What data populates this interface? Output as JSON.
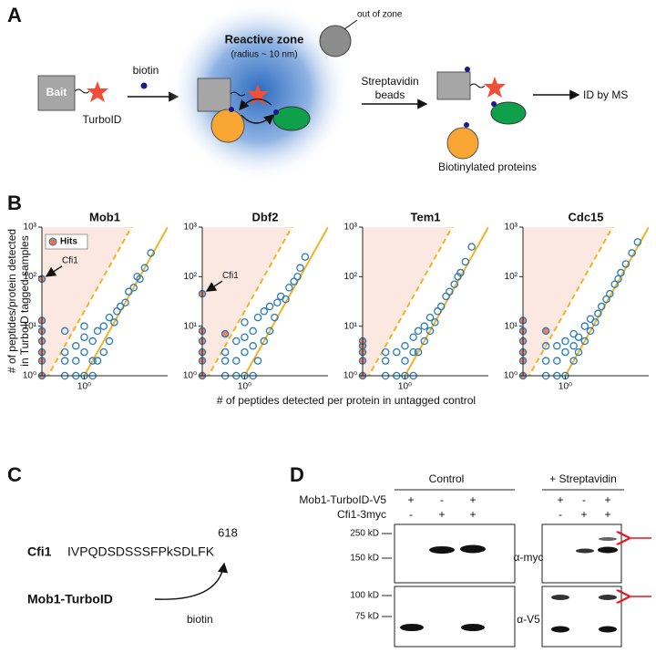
{
  "panel_labels": [
    "A",
    "B",
    "C",
    "D"
  ],
  "diagram_a": {
    "bait": "Bait",
    "turboid": "TurboID",
    "biotin": "biotin",
    "zone_title": "Reactive zone",
    "zone_radius": "(radius ~ 10 nm)",
    "out_of_zone": "out of zone",
    "streptavidin_1": "Streptavidin",
    "streptavidin_2": "beads",
    "id_by_ms": "ID by MS",
    "biotinylated": "Biotinylated proteins"
  },
  "figure_b": {
    "y_label": [
      "# of peptides/protein detected",
      "in TurboID tagged samples"
    ],
    "x_label": "# of peptides detected per protein in untagged control"
  },
  "chart_data": [
    {
      "type": "scatter",
      "title": "Mob1",
      "log_x": true,
      "log_y": true,
      "xlim": [
        0.03,
        1000
      ],
      "ylim": [
        1,
        1000
      ],
      "xticks": [
        {
          "value": 1,
          "label": "10⁰"
        }
      ],
      "yticks": [
        {
          "value": 1,
          "label": "10⁰"
        },
        {
          "value": 10,
          "label": "10¹"
        },
        {
          "value": 100,
          "label": "10²"
        },
        {
          "value": 1000,
          "label": "10³"
        }
      ],
      "guides": [
        {
          "slope": 1,
          "style": "solid",
          "color": "#f0b323"
        },
        {
          "slope": 20,
          "style": "dashed",
          "color": "#f0b323"
        }
      ],
      "shade_color": "#fbe9e1",
      "legend": "upper left",
      "series": [
        {
          "name": "Hits",
          "color": "#e8704a",
          "x": [
            0.03,
            0.03,
            0.03,
            0.03,
            0.03,
            0.03,
            0.03
          ],
          "values": [
            1,
            2,
            3,
            5,
            8,
            13,
            90
          ]
        },
        {
          "color": "#2a7ab9",
          "x": [
            0.2,
            0.2,
            0.2,
            0.2,
            0.5,
            0.5,
            0.5,
            1,
            1,
            1,
            1,
            2,
            2,
            2,
            3,
            3,
            5,
            5,
            8,
            8,
            12,
            15,
            20,
            30,
            40,
            60,
            80,
            100,
            150,
            250
          ],
          "values": [
            1,
            2,
            3,
            8,
            1,
            2,
            4,
            1,
            3,
            6,
            10,
            1,
            2,
            5,
            2,
            8,
            3,
            10,
            5,
            15,
            12,
            20,
            25,
            30,
            50,
            60,
            100,
            90,
            150,
            300
          ]
        }
      ],
      "annotation": {
        "text": "Cfi1",
        "x": 0.03,
        "y": 90
      }
    },
    {
      "type": "scatter",
      "title": "Dbf2",
      "log_x": true,
      "log_y": true,
      "xlim": [
        0.03,
        1000
      ],
      "ylim": [
        1,
        1000
      ],
      "xticks": [
        {
          "value": 1,
          "label": "10⁰"
        }
      ],
      "yticks": [
        {
          "value": 1,
          "label": "10⁰"
        },
        {
          "value": 10,
          "label": "10¹"
        },
        {
          "value": 100,
          "label": "10²"
        },
        {
          "value": 1000,
          "label": "10³"
        }
      ],
      "guides": [
        {
          "slope": 1,
          "style": "solid",
          "color": "#f0b323"
        },
        {
          "slope": 20,
          "style": "dashed",
          "color": "#f0b323"
        }
      ],
      "shade_color": "#fbe9e1",
      "series": [
        {
          "name": "Hits",
          "color": "#e8704a",
          "x": [
            0.03,
            0.03,
            0.03,
            0.03,
            0.03,
            0.03,
            0.2
          ],
          "values": [
            1,
            2,
            3,
            5,
            8,
            45,
            7
          ]
        },
        {
          "color": "#2a7ab9",
          "x": [
            0.2,
            0.2,
            0.2,
            0.5,
            0.5,
            0.5,
            1,
            1,
            1,
            1,
            2,
            2,
            2,
            3,
            3,
            5,
            5,
            8,
            8,
            12,
            15,
            20,
            30,
            40,
            60,
            80,
            100,
            150
          ],
          "values": [
            1,
            2,
            3,
            1,
            2,
            5,
            1,
            3,
            6,
            12,
            1,
            4,
            8,
            2,
            15,
            5,
            20,
            8,
            25,
            15,
            30,
            40,
            35,
            60,
            80,
            100,
            150,
            250
          ]
        }
      ],
      "annotation": {
        "text": "Cfi1",
        "x": 0.03,
        "y": 45
      }
    },
    {
      "type": "scatter",
      "title": "Tem1",
      "log_x": true,
      "log_y": true,
      "xlim": [
        0.03,
        1000
      ],
      "ylim": [
        1,
        1000
      ],
      "xticks": [
        {
          "value": 1,
          "label": "10⁰"
        }
      ],
      "yticks": [
        {
          "value": 1,
          "label": "10⁰"
        },
        {
          "value": 10,
          "label": "10¹"
        },
        {
          "value": 100,
          "label": "10²"
        },
        {
          "value": 1000,
          "label": "10³"
        }
      ],
      "guides": [
        {
          "slope": 1,
          "style": "solid",
          "color": "#f0b323"
        },
        {
          "slope": 20,
          "style": "dashed",
          "color": "#f0b323"
        }
      ],
      "shade_color": "#fbe9e1",
      "series": [
        {
          "name": "Hits",
          "color": "#e8704a",
          "x": [
            0.03,
            0.03,
            0.03,
            0.03,
            0.03
          ],
          "values": [
            1,
            2,
            3,
            4,
            5
          ]
        },
        {
          "color": "#2a7ab9",
          "x": [
            0.2,
            0.2,
            0.2,
            0.5,
            0.5,
            1,
            1,
            1,
            2,
            2,
            2,
            3,
            3,
            5,
            5,
            8,
            8,
            12,
            15,
            20,
            30,
            40,
            60,
            80,
            100,
            150,
            250
          ],
          "values": [
            1,
            2,
            3,
            1,
            3,
            1,
            2,
            4,
            1,
            3,
            6,
            3,
            8,
            5,
            10,
            8,
            15,
            12,
            20,
            25,
            40,
            50,
            70,
            100,
            120,
            200,
            400
          ]
        }
      ]
    },
    {
      "type": "scatter",
      "title": "Cdc15",
      "log_x": true,
      "log_y": true,
      "xlim": [
        0.03,
        1000
      ],
      "ylim": [
        1,
        1000
      ],
      "xticks": [
        {
          "value": 1,
          "label": "10⁰"
        }
      ],
      "yticks": [
        {
          "value": 1,
          "label": "10⁰"
        },
        {
          "value": 10,
          "label": "10¹"
        },
        {
          "value": 100,
          "label": "10²"
        },
        {
          "value": 1000,
          "label": "10³"
        }
      ],
      "guides": [
        {
          "slope": 1,
          "style": "solid",
          "color": "#f0b323"
        },
        {
          "slope": 20,
          "style": "dashed",
          "color": "#f0b323"
        }
      ],
      "shade_color": "#fbe9e1",
      "series": [
        {
          "name": "Hits",
          "color": "#e8704a",
          "x": [
            0.03,
            0.03,
            0.03,
            0.03,
            0.03,
            0.03,
            0.2
          ],
          "values": [
            1,
            2,
            3,
            5,
            8,
            13,
            8
          ]
        },
        {
          "color": "#2a7ab9",
          "x": [
            0.2,
            0.2,
            0.2,
            0.5,
            0.5,
            0.5,
            1,
            1,
            1,
            2,
            2,
            2,
            3,
            3,
            5,
            5,
            8,
            8,
            12,
            15,
            20,
            30,
            40,
            60,
            80,
            100,
            150,
            250,
            400
          ],
          "values": [
            1,
            2,
            4,
            1,
            2,
            4,
            1,
            3,
            5,
            2,
            4,
            7,
            3,
            6,
            5,
            10,
            8,
            14,
            12,
            18,
            25,
            35,
            45,
            70,
            90,
            120,
            180,
            300,
            500
          ]
        }
      ]
    }
  ],
  "panel_c": {
    "protein": "Cfi1",
    "sequence": "IVPQDSDSSSFPkSDLFK",
    "position": "618",
    "enzyme": "Mob1-TurboID",
    "biotin": "biotin"
  },
  "panel_d": {
    "control": "Control",
    "streptavidin": "+ Streptavidin",
    "rows": [
      {
        "label": "Mob1-TurboID-V5",
        "signs": [
          "+",
          "-",
          "+",
          "+",
          "-",
          "+"
        ]
      },
      {
        "label": "Cfi1-3myc",
        "signs": [
          "-",
          "+",
          "+",
          "-",
          "+",
          "+"
        ]
      }
    ],
    "markers": [
      "250 kD",
      "150 kD",
      "100 kD",
      "75 kD"
    ],
    "myc": "α-myc",
    "v5": "α-V5"
  }
}
